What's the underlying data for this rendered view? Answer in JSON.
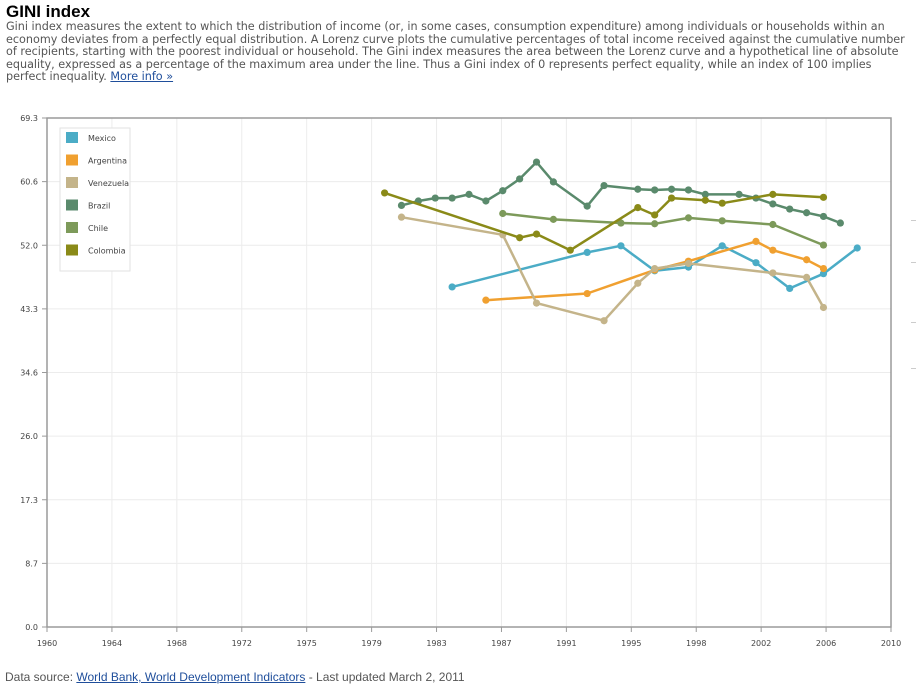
{
  "header": {
    "title": "GINI index",
    "description": "Gini index measures the extent to which the distribution of income (or, in some cases, consumption expenditure) among individuals or households within an economy deviates from a perfectly equal distribution. A Lorenz curve plots the cumulative percentages of total income received against the cumulative number of recipients, starting with the poorest individual or household. The Gini index measures the area between the Lorenz curve and a hypothetical line of absolute equality, expressed as a percentage of the maximum area under the line. Thus a Gini index of 0 represents perfect equality, while an index of 100 implies perfect inequality.",
    "more_info_label": "More info »"
  },
  "footer": {
    "source_prefix": "Data source: ",
    "source_link": "World Bank, World Development Indicators",
    "updated": " - Last updated March 2, 2011"
  },
  "chart_data": {
    "type": "line",
    "title": "",
    "xlabel": "",
    "ylabel": "",
    "xlim": [
      1960,
      2010
    ],
    "ylim": [
      0,
      69.3
    ],
    "x_ticks": [
      "1960",
      "1964",
      "1968",
      "1972",
      "1975",
      "1979",
      "1983",
      "1987",
      "1991",
      "1995",
      "1998",
      "2002",
      "2006",
      "2010"
    ],
    "y_ticks": [
      "0.0",
      "8.7",
      "17.3",
      "26.0",
      "34.6",
      "43.3",
      "52.0",
      "60.6",
      "69.3"
    ],
    "grid": true,
    "legend_position": "top-left",
    "series": [
      {
        "name": "Mexico",
        "color": "#4bacc6",
        "points": [
          [
            1984,
            46.3
          ],
          [
            1992,
            51.0
          ],
          [
            1994,
            51.9
          ],
          [
            1996,
            48.5
          ],
          [
            1998,
            49.0
          ],
          [
            2000,
            51.9
          ],
          [
            2002,
            49.6
          ],
          [
            2004,
            46.1
          ],
          [
            2006,
            48.1
          ],
          [
            2008,
            51.6
          ]
        ]
      },
      {
        "name": "Argentina",
        "color": "#f0a030",
        "points": [
          [
            1986,
            44.5
          ],
          [
            1992,
            45.4
          ],
          [
            1996,
            48.6
          ],
          [
            1998,
            49.8
          ],
          [
            2002,
            52.5
          ],
          [
            2003,
            51.3
          ],
          [
            2005,
            50.0
          ],
          [
            2006,
            48.8
          ]
        ]
      },
      {
        "name": "Venezuela",
        "color": "#c4b48a",
        "points": [
          [
            1981,
            55.8
          ],
          [
            1987,
            53.4
          ],
          [
            1989,
            44.1
          ],
          [
            1993,
            41.7
          ],
          [
            1995,
            46.8
          ],
          [
            1996,
            48.8
          ],
          [
            1998,
            49.5
          ],
          [
            2003,
            48.2
          ],
          [
            2005,
            47.6
          ],
          [
            2006,
            43.5
          ]
        ]
      },
      {
        "name": "Brazil",
        "color": "#5a8a6c",
        "points": [
          [
            1981,
            57.4
          ],
          [
            1982,
            58.0
          ],
          [
            1983,
            58.4
          ],
          [
            1984,
            58.4
          ],
          [
            1985,
            58.9
          ],
          [
            1986,
            58.0
          ],
          [
            1987,
            59.4
          ],
          [
            1988,
            61.0
          ],
          [
            1989,
            63.3
          ],
          [
            1990,
            60.6
          ],
          [
            1992,
            57.3
          ],
          [
            1993,
            60.1
          ],
          [
            1995,
            59.6
          ],
          [
            1996,
            59.5
          ],
          [
            1997,
            59.6
          ],
          [
            1998,
            59.5
          ],
          [
            1999,
            58.9
          ],
          [
            2001,
            58.9
          ],
          [
            2002,
            58.4
          ],
          [
            2003,
            57.6
          ],
          [
            2004,
            56.9
          ],
          [
            2005,
            56.4
          ],
          [
            2006,
            55.9
          ],
          [
            2007,
            55.0
          ]
        ]
      },
      {
        "name": "Chile",
        "color": "#7d9a5a",
        "points": [
          [
            1987,
            56.3
          ],
          [
            1990,
            55.5
          ],
          [
            1994,
            55.0
          ],
          [
            1996,
            54.9
          ],
          [
            1998,
            55.7
          ],
          [
            2000,
            55.3
          ],
          [
            2003,
            54.8
          ],
          [
            2006,
            52.0
          ]
        ]
      },
      {
        "name": "Colombia",
        "color": "#8a8a18",
        "points": [
          [
            1980,
            59.1
          ],
          [
            1988,
            53.0
          ],
          [
            1989,
            53.5
          ],
          [
            1991,
            51.3
          ],
          [
            1995,
            57.1
          ],
          [
            1996,
            56.1
          ],
          [
            1997,
            58.4
          ],
          [
            1999,
            58.1
          ],
          [
            2000,
            57.7
          ],
          [
            2003,
            58.9
          ],
          [
            2006,
            58.5
          ]
        ]
      }
    ]
  }
}
